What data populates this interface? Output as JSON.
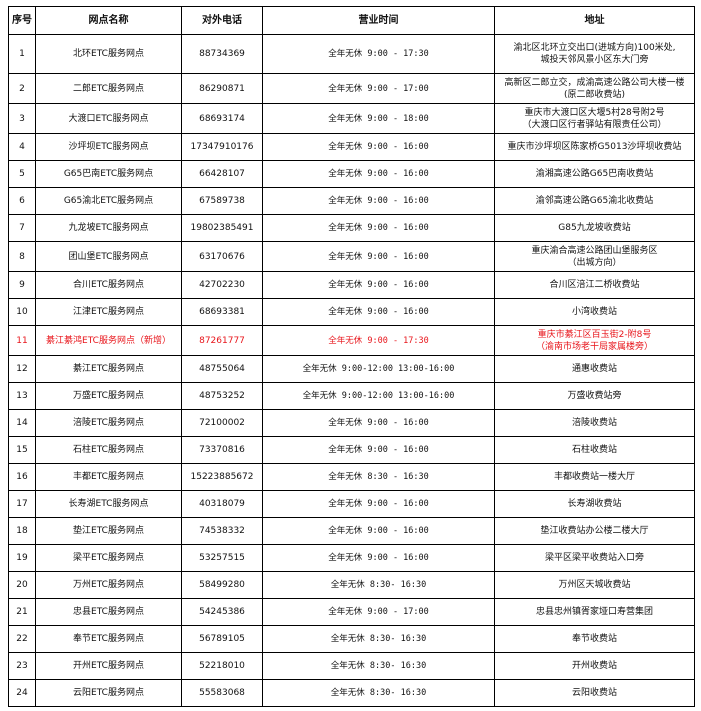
{
  "header": {
    "no": "序号",
    "name": "网点名称",
    "phone": "对外电话",
    "hours": "营业时间",
    "address": "地址"
  },
  "highlight_color": "#e8151b",
  "rows": [
    {
      "no": "1",
      "name": "北环ETC服务网点",
      "phone": "88734369",
      "hours": "全年无休 9:00 - 17:30",
      "address": [
        "渝北区北环立交出口(进城方向)100米处,",
        "城投天邻风景小区东大门旁"
      ]
    },
    {
      "no": "2",
      "name": "二郎ETC服务网点",
      "phone": "86290871",
      "hours": "全年无休 9:00 - 17:00",
      "address": [
        "高新区二郎立交，成渝高速公路公司大楼一楼",
        "(原二郎收费站)"
      ]
    },
    {
      "no": "3",
      "name": "大渡口ETC服务网点",
      "phone": "68693174",
      "hours": "全年无休 9:00 - 18:00",
      "address": [
        "重庆市大渡口区大堰5村28号附2号",
        "（大渡口区行者驿站有限责任公司）"
      ]
    },
    {
      "no": "4",
      "name": "沙坪坝ETC服务网点",
      "phone": "17347910176",
      "hours": "全年无休 9:00 - 16:00",
      "address": [
        "重庆市沙坪坝区陈家桥G5013沙坪坝收费站"
      ]
    },
    {
      "no": "5",
      "name": "G65巴南ETC服务网点",
      "phone": "66428107",
      "hours": "全年无休 9:00 - 16:00",
      "address": [
        "渝湘高速公路G65巴南收费站"
      ]
    },
    {
      "no": "6",
      "name": "G65渝北ETC服务网点",
      "phone": "67589738",
      "hours": "全年无休 9:00 - 16:00",
      "address": [
        "渝邻高速公路G65渝北收费站"
      ]
    },
    {
      "no": "7",
      "name": "九龙坡ETC服务网点",
      "phone": "19802385491",
      "hours": "全年无休 9:00 - 16:00",
      "address": [
        "G85九龙坡收费站"
      ]
    },
    {
      "no": "8",
      "name": "团山堡ETC服务网点",
      "phone": "63170676",
      "hours": "全年无休 9:00 - 16:00",
      "address": [
        "重庆渝合高速公路团山堡服务区",
        "（出城方向）"
      ]
    },
    {
      "no": "9",
      "name": "合川ETC服务网点",
      "phone": "42702230",
      "hours": "全年无休 9:00 - 16:00",
      "address": [
        "合川区涪江二桥收费站"
      ]
    },
    {
      "no": "10",
      "name": "江津ETC服务网点",
      "phone": "68693381",
      "hours": "全年无休 9:00 - 16:00",
      "address": [
        "小湾收费站"
      ]
    },
    {
      "no": "11",
      "name": "綦江綦鸿ETC服务网点（新增）",
      "phone": "87261777",
      "hours": "全年无休 9:00 - 17:30",
      "address": [
        "重庆市綦江区百玉街2-附8号",
        "（渝南市场老干局家属楼旁）"
      ],
      "highlight": true
    },
    {
      "no": "12",
      "name": "綦江ETC服务网点",
      "phone": "48755064",
      "hours": "全年无休 9:00-12:00 13:00-16:00",
      "address": [
        "通惠收费站"
      ]
    },
    {
      "no": "13",
      "name": "万盛ETC服务网点",
      "phone": "48753252",
      "hours": "全年无休 9:00-12:00 13:00-16:00",
      "address": [
        "万盛收费站旁"
      ]
    },
    {
      "no": "14",
      "name": "涪陵ETC服务网点",
      "phone": "72100002",
      "hours": "全年无休 9:00 - 16:00",
      "address": [
        "涪陵收费站"
      ]
    },
    {
      "no": "15",
      "name": "石柱ETC服务网点",
      "phone": "73370816",
      "hours": "全年无休 9:00 - 16:00",
      "address": [
        "石柱收费站"
      ]
    },
    {
      "no": "16",
      "name": "丰都ETC服务网点",
      "phone": "15223885672",
      "hours": "全年无休 8:30 - 16:30",
      "address": [
        "丰都收费站一楼大厅"
      ]
    },
    {
      "no": "17",
      "name": "长寿湖ETC服务网点",
      "phone": "40318079",
      "hours": "全年无休 9:00 - 16:00",
      "address": [
        "长寿湖收费站"
      ]
    },
    {
      "no": "18",
      "name": "垫江ETC服务网点",
      "phone": "74538332",
      "hours": "全年无休 9:00 - 16:00",
      "address": [
        "垫江收费站办公楼二楼大厅"
      ]
    },
    {
      "no": "19",
      "name": "梁平ETC服务网点",
      "phone": "53257515",
      "hours": "全年无休 9:00 - 16:00",
      "address": [
        "梁平区梁平收费站入口旁"
      ]
    },
    {
      "no": "20",
      "name": "万州ETC服务网点",
      "phone": "58499280",
      "hours": "全年无休 8:30- 16:30",
      "address": [
        "万州区天城收费站"
      ]
    },
    {
      "no": "21",
      "name": "忠县ETC服务网点",
      "phone": "54245386",
      "hours": "全年无休 9:00 - 17:00",
      "address": [
        "忠县忠州镇胥家垭口寿营集团"
      ]
    },
    {
      "no": "22",
      "name": "奉节ETC服务网点",
      "phone": "56789105",
      "hours": "全年无休 8:30- 16:30",
      "address": [
        "奉节收费站"
      ]
    },
    {
      "no": "23",
      "name": "开州ETC服务网点",
      "phone": "52218010",
      "hours": "全年无休 8:30- 16:30",
      "address": [
        "开州收费站"
      ]
    },
    {
      "no": "24",
      "name": "云阳ETC服务网点",
      "phone": "55583068",
      "hours": "全年无休 8:30- 16:30",
      "address": [
        "云阳收费站"
      ]
    }
  ]
}
